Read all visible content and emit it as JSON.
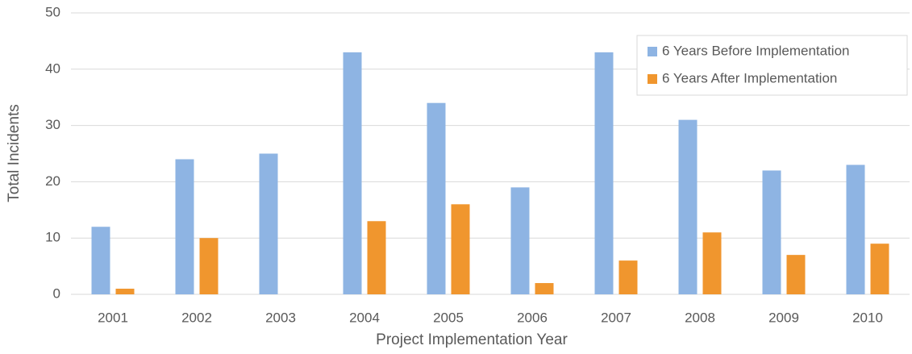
{
  "chart_data": {
    "type": "bar",
    "xlabel": "Project Implementation Year",
    "ylabel": "Total Incidents",
    "categories": [
      "2001",
      "2002",
      "2003",
      "2004",
      "2005",
      "2006",
      "2007",
      "2008",
      "2009",
      "2010"
    ],
    "series": [
      {
        "name": "6 Years Before Implementation",
        "color": "#8eb4e3",
        "values": [
          12,
          24,
          25,
          43,
          34,
          19,
          43,
          31,
          22,
          23
        ]
      },
      {
        "name": "6 Years After Implementation",
        "color": "#f0962e",
        "values": [
          1,
          10,
          0,
          13,
          16,
          2,
          6,
          11,
          7,
          9
        ]
      }
    ],
    "ylim": [
      0,
      50
    ],
    "yticks": [
      0,
      10,
      20,
      30,
      40,
      50
    ],
    "grid": true,
    "legend": "upper right"
  }
}
